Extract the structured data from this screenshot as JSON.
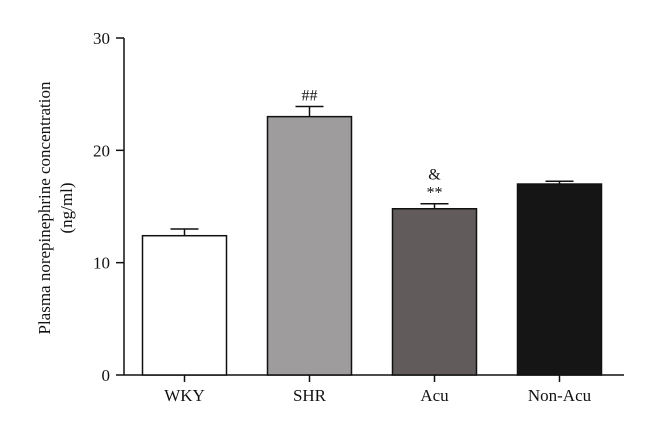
{
  "chart_data": {
    "type": "bar",
    "title": "",
    "xlabel": "",
    "ylabel": [
      "Plasma norepinephrine concentration",
      "(ng/ml)"
    ],
    "ylim": [
      0,
      30
    ],
    "yticks": [
      0,
      10,
      20,
      30
    ],
    "grid": false,
    "categories": [
      "WKY",
      "SHR",
      "Acu",
      "Non-Acu"
    ],
    "values": [
      12.4,
      23.0,
      14.8,
      17.0
    ],
    "errors": [
      0.6,
      0.9,
      0.45,
      0.25
    ],
    "fill_colors": [
      "#ffffff",
      "#9f9c9d",
      "#625b5c",
      "#151515"
    ],
    "annotations": [
      {
        "category": "SHR",
        "lines": [
          "##"
        ]
      },
      {
        "category": "Acu",
        "lines": [
          "&",
          "**"
        ]
      }
    ]
  }
}
